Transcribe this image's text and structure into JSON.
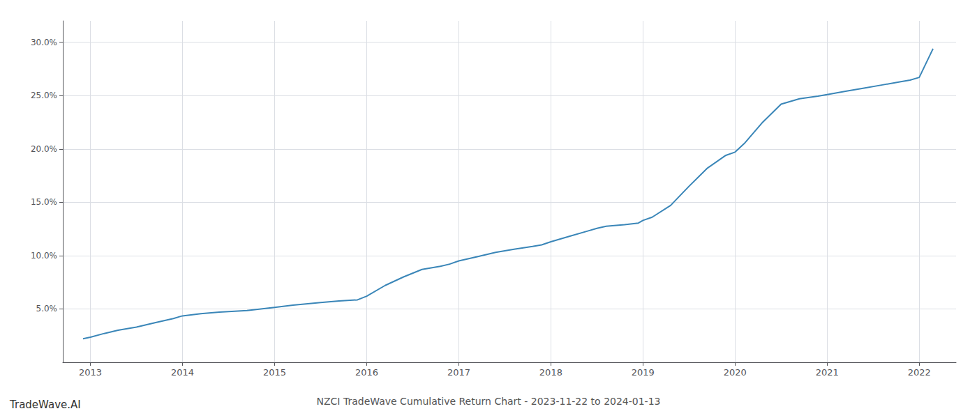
{
  "chart_data": {
    "type": "line",
    "title": "NZCI TradeWave Cumulative Return Chart - 2023-11-22 to 2024-01-13",
    "annotations": [
      "TradeWave.AI"
    ],
    "color": "#3a86b8",
    "grid": true,
    "x": [
      2012.92,
      2013.0,
      2013.15,
      2013.3,
      2013.5,
      2013.7,
      2013.9,
      2014.0,
      2014.2,
      2014.4,
      2014.5,
      2014.7,
      2014.9,
      2015.0,
      2015.2,
      2015.5,
      2015.7,
      2015.9,
      2016.0,
      2016.2,
      2016.4,
      2016.6,
      2016.8,
      2016.9,
      2017.0,
      2017.2,
      2017.4,
      2017.6,
      2017.8,
      2017.9,
      2018.0,
      2018.2,
      2018.4,
      2018.5,
      2018.6,
      2018.8,
      2018.95,
      2019.0,
      2019.1,
      2019.3,
      2019.5,
      2019.7,
      2019.9,
      2020.0,
      2020.1,
      2020.3,
      2020.5,
      2020.7,
      2020.9,
      2021.0,
      2021.2,
      2021.4,
      2021.6,
      2021.8,
      2021.9,
      2022.0,
      2022.15
    ],
    "values": [
      2.2,
      2.35,
      2.7,
      3.0,
      3.3,
      3.7,
      4.1,
      4.35,
      4.55,
      4.7,
      4.75,
      4.85,
      5.05,
      5.15,
      5.35,
      5.6,
      5.75,
      5.85,
      6.2,
      7.2,
      8.0,
      8.7,
      9.0,
      9.2,
      9.5,
      9.9,
      10.3,
      10.6,
      10.85,
      11.0,
      11.3,
      11.8,
      12.3,
      12.55,
      12.75,
      12.9,
      13.05,
      13.3,
      13.6,
      14.7,
      16.5,
      18.2,
      19.4,
      19.7,
      20.5,
      22.5,
      24.2,
      24.7,
      24.95,
      25.1,
      25.4,
      25.7,
      26.0,
      26.3,
      26.45,
      26.7,
      29.4
    ],
    "xlim": [
      2012.7,
      2022.4
    ],
    "xticks": [
      2013,
      2014,
      2015,
      2016,
      2017,
      2018,
      2019,
      2020,
      2021,
      2022
    ],
    "ylim": [
      0,
      32
    ],
    "yticks": [
      {
        "value": 5.0,
        "label": "5.0%"
      },
      {
        "value": 10.0,
        "label": "10.0%"
      },
      {
        "value": 15.0,
        "label": "15.0%"
      },
      {
        "value": 20.0,
        "label": "20.0%"
      },
      {
        "value": 25.0,
        "label": "25.0%"
      },
      {
        "value": 30.0,
        "label": "30.0%"
      }
    ]
  }
}
